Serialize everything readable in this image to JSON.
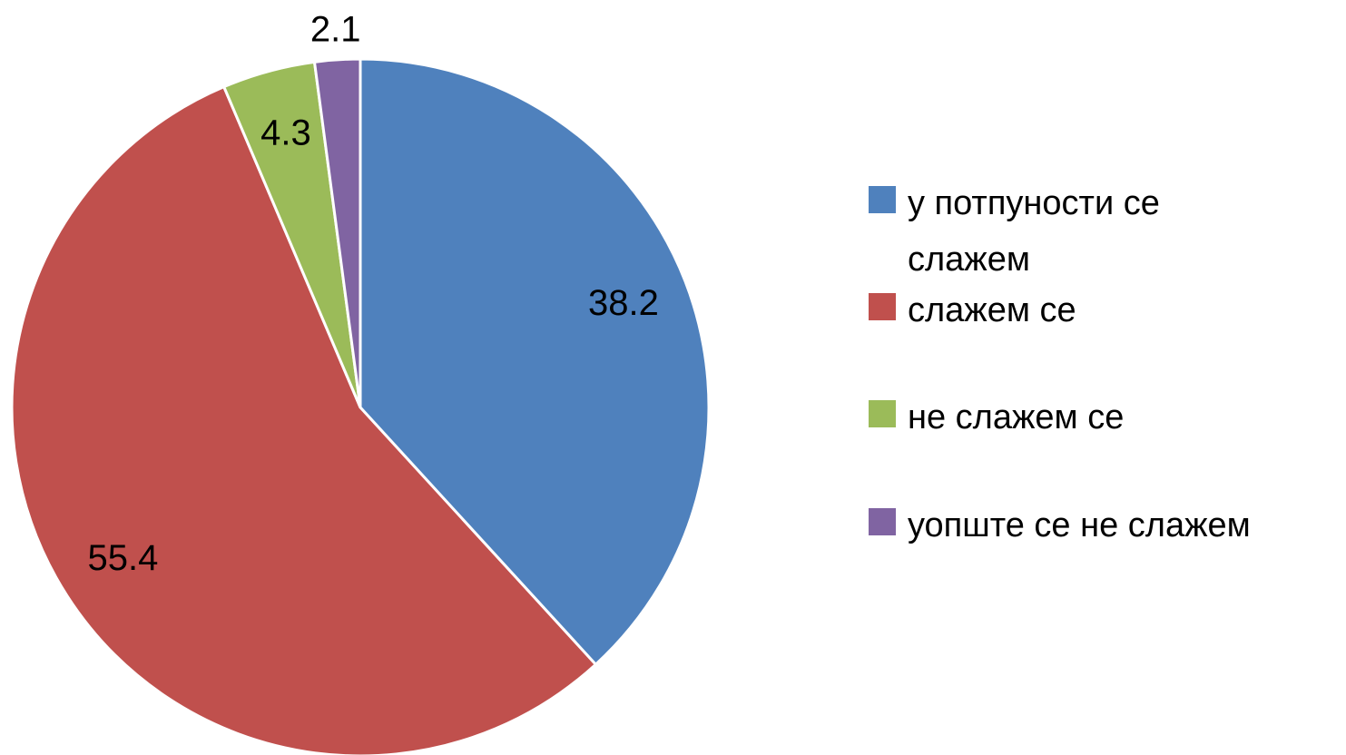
{
  "chart_data": {
    "type": "pie",
    "categories": [
      "у потпуности се слажем",
      "слажем се",
      "не слажем се",
      "уопште се не слажем"
    ],
    "values": [
      38.2,
      55.4,
      4.3,
      2.1
    ],
    "colors": [
      "#4f81bd",
      "#c0504d",
      "#9bbb59",
      "#8064a2"
    ],
    "legend": "right"
  }
}
